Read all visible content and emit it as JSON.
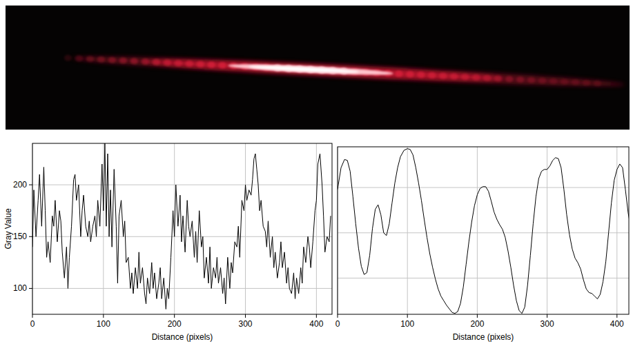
{
  "chart_data": [
    {
      "type": "line",
      "y_label": "Gray Value",
      "x_label": "Distance (pixels)",
      "color": "#000000",
      "grid": true,
      "xlim": [
        0,
        422
      ],
      "ylim": [
        75,
        240
      ],
      "xticks": [
        0,
        100,
        200,
        300,
        400
      ],
      "yticks": [
        100,
        150,
        200
      ],
      "x": [
        0,
        2,
        5,
        8,
        10,
        13,
        16,
        18,
        20,
        22,
        25,
        28,
        30,
        32,
        35,
        38,
        40,
        42,
        45,
        48,
        50,
        52,
        55,
        58,
        60,
        62,
        65,
        68,
        70,
        72,
        75,
        78,
        80,
        82,
        85,
        88,
        90,
        92,
        95,
        98,
        100,
        102,
        104,
        106,
        108,
        110,
        112,
        115,
        118,
        120,
        122,
        125,
        128,
        130,
        132,
        135,
        138,
        140,
        142,
        145,
        148,
        150,
        152,
        155,
        158,
        160,
        162,
        165,
        168,
        170,
        172,
        175,
        178,
        180,
        182,
        185,
        188,
        190,
        192,
        195,
        198,
        200,
        202,
        205,
        208,
        210,
        212,
        215,
        218,
        220,
        222,
        225,
        228,
        230,
        232,
        235,
        238,
        240,
        242,
        245,
        248,
        250,
        252,
        255,
        258,
        260,
        262,
        265,
        268,
        270,
        272,
        275,
        278,
        280,
        282,
        285,
        288,
        290,
        292,
        295,
        298,
        300,
        302,
        305,
        308,
        310,
        312,
        314,
        316,
        318,
        320,
        322,
        325,
        328,
        330,
        332,
        335,
        338,
        340,
        342,
        345,
        348,
        350,
        352,
        355,
        358,
        360,
        362,
        365,
        368,
        370,
        372,
        375,
        378,
        380,
        382,
        385,
        388,
        390,
        392,
        395,
        398,
        400,
        402,
        405,
        408,
        410,
        412,
        415,
        418,
        420
      ],
      "values": [
        140,
        195,
        150,
        185,
        210,
        160,
        217,
        175,
        130,
        145,
        125,
        170,
        160,
        185,
        145,
        175,
        165,
        135,
        110,
        140,
        100,
        130,
        160,
        205,
        210,
        185,
        200,
        150,
        175,
        190,
        160,
        150,
        165,
        145,
        160,
        170,
        150,
        185,
        160,
        220,
        175,
        240,
        160,
        230,
        150,
        195,
        140,
        215,
        160,
        105,
        170,
        185,
        150,
        165,
        125,
        130,
        100,
        115,
        95,
        120,
        100,
        135,
        105,
        120,
        95,
        85,
        110,
        95,
        125,
        100,
        115,
        90,
        105,
        120,
        90,
        110,
        80,
        100,
        90,
        130,
        175,
        150,
        200,
        160,
        190,
        145,
        170,
        135,
        185,
        160,
        150,
        165,
        130,
        155,
        125,
        175,
        140,
        150,
        110,
        130,
        105,
        140,
        100,
        120,
        110,
        130,
        105,
        120,
        95,
        110,
        85,
        130,
        100,
        125,
        115,
        145,
        140,
        160,
        130,
        185,
        175,
        200,
        185,
        195,
        190,
        205,
        225,
        230,
        215,
        200,
        175,
        185,
        160,
        155,
        140,
        165,
        130,
        150,
        120,
        135,
        110,
        125,
        145,
        120,
        135,
        105,
        120,
        100,
        95,
        115,
        90,
        110,
        95,
        120,
        105,
        140,
        125,
        150,
        140,
        120,
        145,
        175,
        185,
        220,
        230,
        200,
        170,
        135,
        150,
        145,
        170
      ]
    },
    {
      "type": "line",
      "x_label": "Distance (pixels)",
      "color": "#000000",
      "grid": true,
      "tick_labels": "x",
      "xlim": [
        0,
        417
      ],
      "ylim": [
        60,
        245
      ],
      "xticks": [
        0,
        100,
        200,
        300,
        400
      ],
      "yticks": [
        100,
        150,
        200
      ],
      "x": [
        0,
        5,
        10,
        14,
        18,
        22,
        26,
        30,
        34,
        38,
        42,
        46,
        50,
        54,
        58,
        62,
        66,
        70,
        74,
        78,
        82,
        86,
        90,
        95,
        100,
        104,
        108,
        112,
        116,
        120,
        124,
        128,
        132,
        136,
        140,
        144,
        148,
        152,
        156,
        160,
        164,
        168,
        172,
        176,
        180,
        184,
        188,
        192,
        196,
        200,
        204,
        208,
        212,
        216,
        220,
        224,
        228,
        232,
        236,
        240,
        244,
        248,
        252,
        256,
        260,
        264,
        268,
        272,
        276,
        280,
        284,
        288,
        292,
        296,
        300,
        304,
        308,
        312,
        316,
        320,
        324,
        328,
        332,
        336,
        340,
        344,
        348,
        352,
        356,
        360,
        364,
        368,
        372,
        376,
        380,
        384,
        388,
        392,
        396,
        400,
        404,
        408,
        412,
        416,
        418
      ],
      "values": [
        198,
        222,
        231,
        230,
        218,
        190,
        160,
        133,
        113,
        104,
        106,
        125,
        155,
        176,
        181,
        170,
        150,
        147,
        160,
        183,
        205,
        222,
        234,
        241,
        243,
        242,
        236,
        222,
        205,
        186,
        165,
        145,
        127,
        112,
        99,
        88,
        80,
        75,
        70,
        66,
        62,
        61,
        63,
        72,
        90,
        115,
        140,
        162,
        180,
        192,
        199,
        201,
        201,
        196,
        185,
        173,
        165,
        159,
        154,
        145,
        130,
        112,
        92,
        75,
        64,
        61,
        68,
        92,
        125,
        160,
        190,
        210,
        218,
        220,
        220,
        224,
        230,
        233,
        232,
        222,
        198,
        170,
        148,
        132,
        122,
        117,
        110,
        98,
        88,
        84,
        83,
        80,
        77,
        82,
        96,
        118,
        150,
        183,
        208,
        220,
        226,
        222,
        198,
        172,
        163
      ]
    }
  ]
}
